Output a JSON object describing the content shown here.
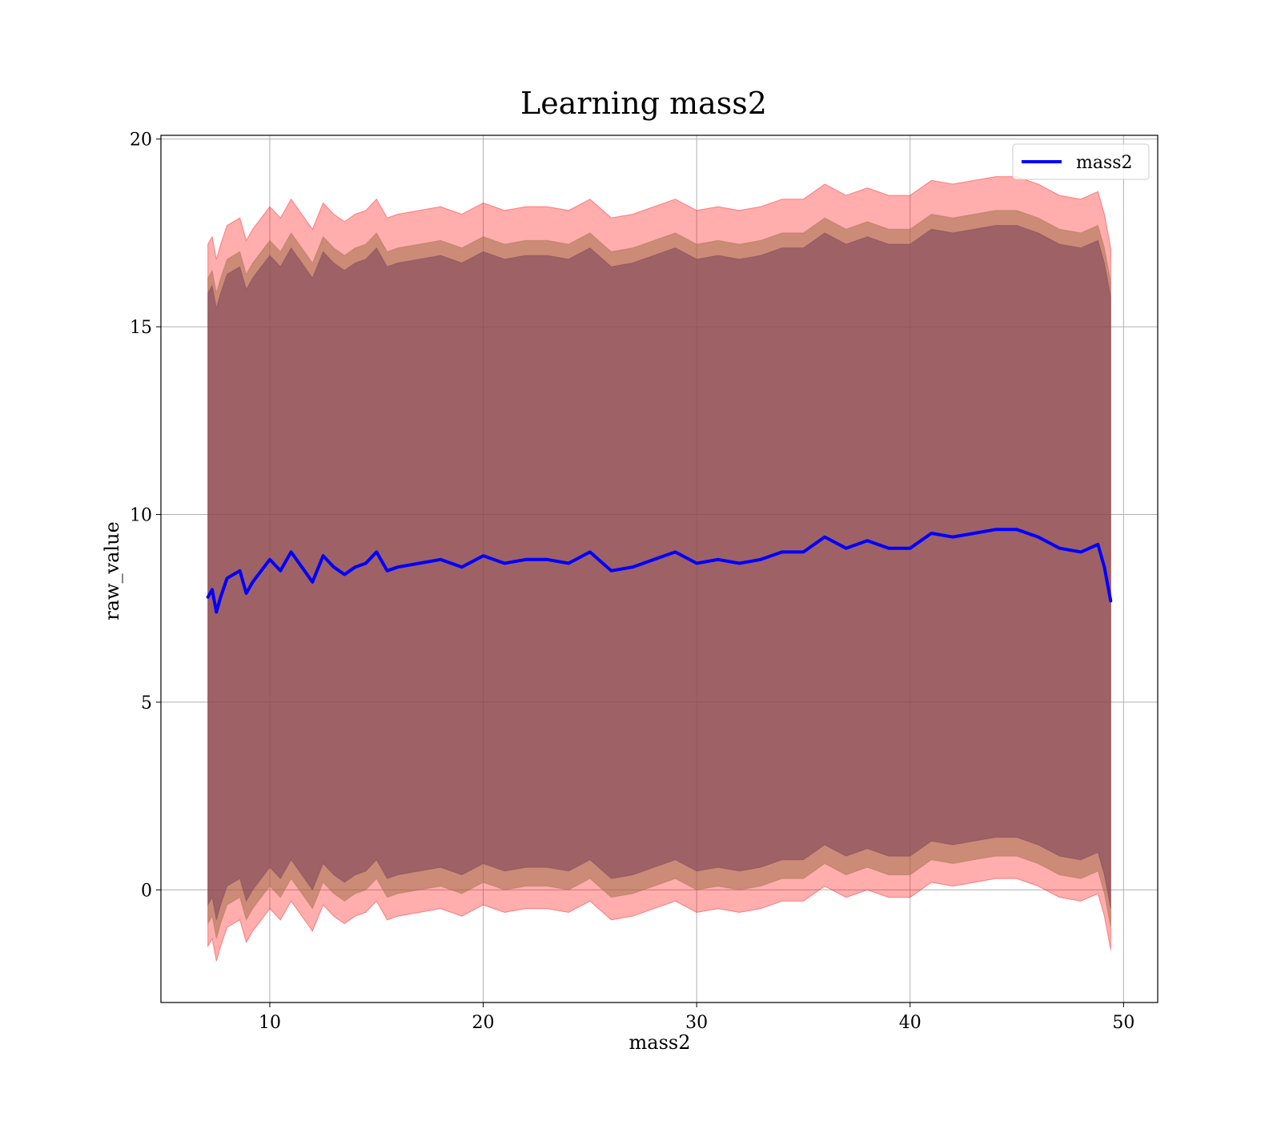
{
  "colors": {
    "line": "#0000ff",
    "outer_band": "#ff0000",
    "middle_band": "#a0704a",
    "inner_band": "#7a3f5a",
    "grid": "#b0b0b0",
    "axes": "#000000",
    "legend_border": "#cccccc"
  },
  "chart_data": {
    "type": "line",
    "title": "Learning mass2",
    "xlabel": "mass2",
    "ylabel": "raw_value",
    "xlim": [
      4.9,
      51.6
    ],
    "ylim": [
      -3.0,
      20.1
    ],
    "xticks": [
      10,
      20,
      30,
      40,
      50
    ],
    "yticks": [
      0,
      5,
      10,
      15,
      20
    ],
    "grid": true,
    "legend_position": "top-right",
    "legend": [
      "mass2"
    ],
    "series": [
      {
        "name": "mass2",
        "x": [
          7.1,
          7.3,
          7.5,
          7.7,
          8.0,
          8.3,
          8.6,
          8.9,
          9.2,
          9.6,
          10.0,
          10.5,
          11.0,
          11.5,
          12.0,
          12.5,
          13.0,
          13.5,
          14.0,
          14.5,
          15.0,
          15.5,
          16.0,
          17.0,
          18.0,
          19.0,
          20.0,
          21.0,
          22.0,
          23.0,
          24.0,
          25.0,
          26.0,
          27.0,
          28.0,
          29.0,
          30.0,
          31.0,
          32.0,
          33.0,
          34.0,
          35.0,
          36.0,
          37.0,
          38.0,
          39.0,
          40.0,
          41.0,
          42.0,
          43.0,
          44.0,
          45.0,
          46.0,
          47.0,
          48.0,
          48.8,
          49.1,
          49.4
        ],
        "y": [
          7.8,
          8.0,
          7.4,
          7.8,
          8.3,
          8.4,
          8.5,
          7.9,
          8.2,
          8.5,
          8.8,
          8.5,
          9.0,
          8.6,
          8.2,
          8.9,
          8.6,
          8.4,
          8.6,
          8.7,
          9.0,
          8.5,
          8.6,
          8.7,
          8.8,
          8.6,
          8.9,
          8.7,
          8.8,
          8.8,
          8.7,
          9.0,
          8.5,
          8.6,
          8.8,
          9.0,
          8.7,
          8.8,
          8.7,
          8.8,
          9.0,
          9.0,
          9.4,
          9.1,
          9.3,
          9.1,
          9.1,
          9.5,
          9.4,
          9.5,
          9.6,
          9.6,
          9.4,
          9.1,
          9.0,
          9.2,
          8.6,
          7.7
        ],
        "bands": [
          {
            "level": "outer",
            "lower_offset": -9.3,
            "upper_offset": 9.4
          },
          {
            "level": "middle",
            "lower_offset": -8.7,
            "upper_offset": 8.5
          },
          {
            "level": "inner",
            "lower_offset": -8.2,
            "upper_offset": 8.1
          }
        ]
      }
    ]
  }
}
